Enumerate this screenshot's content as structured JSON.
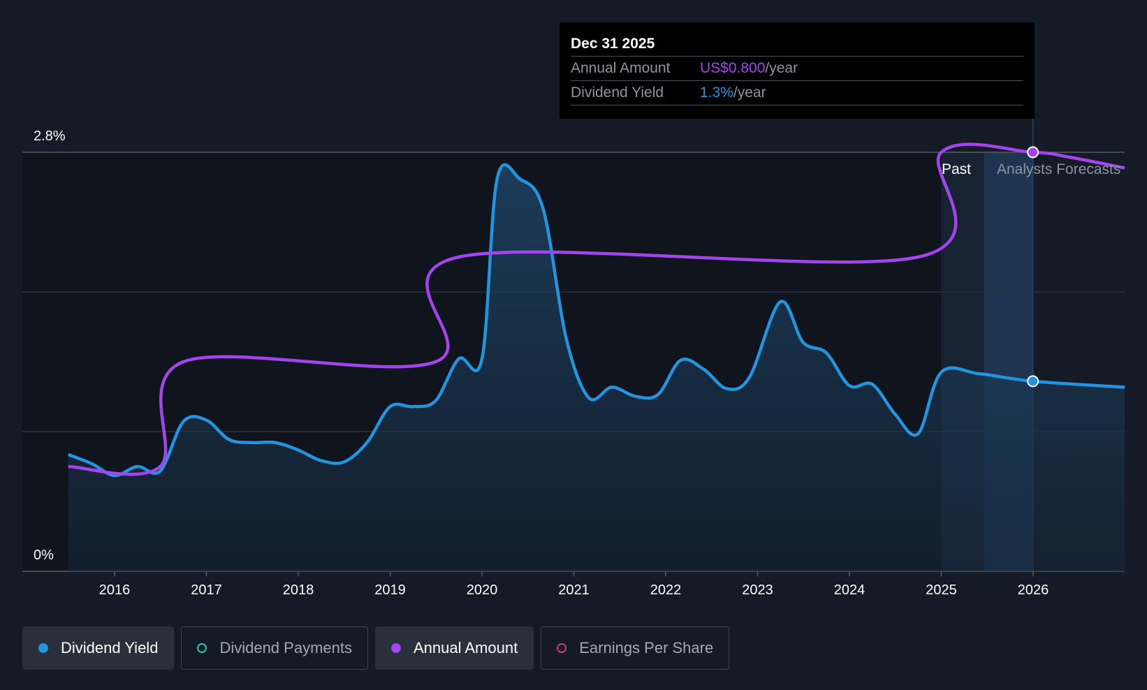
{
  "chart_data": {
    "type": "line",
    "y_axis": {
      "min": 0,
      "max": 2.8,
      "tick_labels": [
        "2.8%",
        "0%"
      ]
    },
    "x_axis": {
      "tick_labels": [
        "2016",
        "2017",
        "2018",
        "2019",
        "2020",
        "2021",
        "2022",
        "2023",
        "2024",
        "2025",
        "2026"
      ]
    },
    "grid": true,
    "regions": {
      "past_label": "Past",
      "forecast_label": "Analysts Forecasts"
    },
    "series": [
      {
        "name": "Dividend Yield",
        "color": "#2394df",
        "unit": "%",
        "points": [
          [
            "2015-07-01",
            0.78
          ],
          [
            "2015-10-01",
            0.72
          ],
          [
            "2016-01-01",
            0.64
          ],
          [
            "2016-04-01",
            0.7
          ],
          [
            "2016-07-01",
            0.67
          ],
          [
            "2016-10-01",
            1.0
          ],
          [
            "2017-01-01",
            1.01
          ],
          [
            "2017-04-01",
            0.88
          ],
          [
            "2017-07-01",
            0.86
          ],
          [
            "2017-10-01",
            0.86
          ],
          [
            "2018-01-01",
            0.81
          ],
          [
            "2018-04-01",
            0.74
          ],
          [
            "2018-07-01",
            0.73
          ],
          [
            "2018-10-01",
            0.86
          ],
          [
            "2019-01-01",
            1.1
          ],
          [
            "2019-04-01",
            1.1
          ],
          [
            "2019-07-01",
            1.14
          ],
          [
            "2019-10-01",
            1.42
          ],
          [
            "2020-01-01",
            1.42
          ],
          [
            "2020-03-01",
            2.62
          ],
          [
            "2020-06-01",
            2.62
          ],
          [
            "2020-09-01",
            2.42
          ],
          [
            "2020-12-01",
            1.56
          ],
          [
            "2021-03-01",
            1.16
          ],
          [
            "2021-06-01",
            1.23
          ],
          [
            "2021-09-01",
            1.17
          ],
          [
            "2021-12-01",
            1.18
          ],
          [
            "2022-03-01",
            1.41
          ],
          [
            "2022-06-01",
            1.35
          ],
          [
            "2022-09-01",
            1.22
          ],
          [
            "2022-12-01",
            1.3
          ],
          [
            "2023-04-01",
            1.8
          ],
          [
            "2023-07-01",
            1.53
          ],
          [
            "2023-10-01",
            1.46
          ],
          [
            "2024-01-01",
            1.24
          ],
          [
            "2024-04-01",
            1.25
          ],
          [
            "2024-07-01",
            1.05
          ],
          [
            "2024-10-01",
            0.92
          ],
          [
            "2025-01-01",
            1.33
          ],
          [
            "2025-06-01",
            1.32
          ],
          [
            "2025-12-31",
            1.27
          ],
          [
            "2026-12-31",
            1.23
          ]
        ]
      },
      {
        "name": "Annual Amount",
        "color": "#a345ec",
        "unit": "US$/year",
        "points": [
          [
            "2015-07-01",
            0.2
          ],
          [
            "2016-07-01",
            0.2
          ],
          [
            "2016-10-01",
            0.4
          ],
          [
            "2019-07-01",
            0.4
          ],
          [
            "2019-10-01",
            0.6
          ],
          [
            "2024-10-01",
            0.6
          ],
          [
            "2025-01-01",
            0.8
          ],
          [
            "2025-12-31",
            0.8
          ],
          [
            "2026-06-01",
            0.79
          ],
          [
            "2026-12-31",
            0.77
          ]
        ]
      }
    ],
    "highlight": {
      "date": "2025-12-31",
      "yield": 1.27,
      "amount": 0.8
    }
  },
  "tooltip": {
    "date": "Dec 31 2025",
    "rows": [
      {
        "label": "Annual Amount",
        "value": "US$0.800",
        "suffix": "/year",
        "color": "#a345ec"
      },
      {
        "label": "Dividend Yield",
        "value": "1.3%",
        "suffix": "/year",
        "color": "#2394df"
      }
    ]
  },
  "legend": [
    {
      "label": "Dividend Yield",
      "color": "#2394df",
      "active": true,
      "filled": true
    },
    {
      "label": "Dividend Payments",
      "color": "#3fc3b0",
      "active": false,
      "filled": false
    },
    {
      "label": "Annual Amount",
      "color": "#a345ec",
      "active": true,
      "filled": true
    },
    {
      "label": "Earnings Per Share",
      "color": "#c8417a",
      "active": false,
      "filled": false
    }
  ]
}
